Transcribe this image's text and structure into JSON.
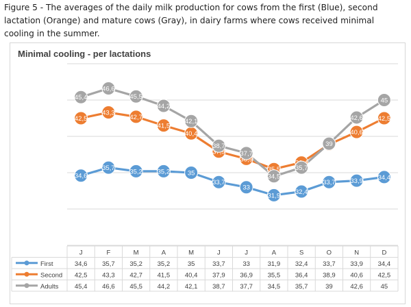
{
  "caption": "Figure 5 - The averages of the daily milk production for cows from the first (Blue), second lactation (Orange) and mature cows (Gray), in dairy farms where cows received minimal cooling in the summer.",
  "chart_data": {
    "type": "line",
    "title": "Minimal cooling - per lactations",
    "categories": [
      "J",
      "F",
      "M",
      "A",
      "M",
      "J",
      "J",
      "A",
      "S",
      "O",
      "N",
      "D"
    ],
    "series": [
      {
        "name": "First",
        "color": "#5b9bd5",
        "values": [
          34.6,
          35.7,
          35.2,
          35.2,
          35,
          33.7,
          33,
          31.9,
          32.4,
          33.7,
          33.9,
          34.4
        ],
        "labels": [
          "34,6",
          "35,7",
          "35,2",
          "35,2",
          "35",
          "33,7",
          "33",
          "31,9",
          "32,4",
          "33,7",
          "33,9",
          "34,4"
        ]
      },
      {
        "name": "Second",
        "color": "#ed7d31",
        "values": [
          42.5,
          43.3,
          42.7,
          41.5,
          40.4,
          37.9,
          36.9,
          35.5,
          36.4,
          38.9,
          40.6,
          42.5
        ],
        "labels": [
          "42,5",
          "43,3",
          "42,7",
          "41,5",
          "40,4",
          "37,9",
          "36,9",
          "35,5",
          "36,4",
          "38,9",
          "40,6",
          "42,5"
        ]
      },
      {
        "name": "Adults",
        "color": "#a5a5a5",
        "values": [
          45.4,
          46.6,
          45.5,
          44.2,
          42.1,
          38.7,
          37.7,
          34.5,
          35.7,
          39,
          42.6,
          45
        ],
        "labels": [
          "45,4",
          "46,6",
          "45,5",
          "44,2",
          "42,1",
          "38,7",
          "37,7",
          "34,5",
          "35,7",
          "39",
          "42,6",
          "45"
        ]
      }
    ],
    "ylim": [
      25,
      50
    ],
    "grid": true,
    "data_table": true,
    "legend": "data-table"
  }
}
